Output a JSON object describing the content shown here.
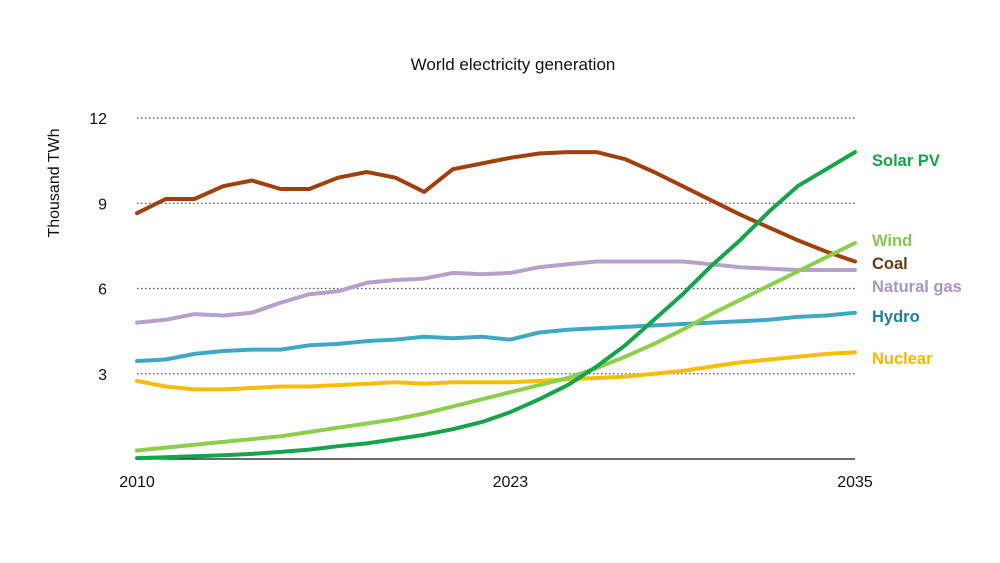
{
  "chart_data": {
    "type": "line",
    "title": "World electricity generation",
    "xlabel": "",
    "ylabel": "Thousand TWh",
    "xlim": [
      2010,
      2035
    ],
    "ylim": [
      0,
      12
    ],
    "x_ticks": [
      2010,
      2023,
      2035
    ],
    "y_ticks": [
      3,
      6,
      9,
      12
    ],
    "grid": "horizontal dotted",
    "legend": "right, end-of-line labels",
    "x": [
      2010,
      2011,
      2012,
      2013,
      2014,
      2015,
      2016,
      2017,
      2018,
      2019,
      2020,
      2021,
      2022,
      2023,
      2024,
      2025,
      2026,
      2027,
      2028,
      2029,
      2030,
      2031,
      2032,
      2033,
      2034,
      2035
    ],
    "series": [
      {
        "name": "Coal",
        "color": "#a0410d",
        "label_color": "#6b3a0e",
        "values": [
          8.65,
          9.15,
          9.15,
          9.6,
          9.8,
          9.5,
          9.5,
          9.9,
          10.1,
          9.9,
          9.4,
          10.2,
          10.4,
          10.6,
          10.75,
          10.8,
          10.8,
          10.55,
          10.1,
          9.6,
          9.1,
          8.6,
          8.15,
          7.7,
          7.3,
          6.95
        ]
      },
      {
        "name": "Natural gas",
        "color": "#b5a1cc",
        "label_color": "#a996c4",
        "values": [
          4.8,
          4.9,
          5.1,
          5.05,
          5.15,
          5.5,
          5.8,
          5.9,
          6.2,
          6.3,
          6.35,
          6.55,
          6.5,
          6.55,
          6.75,
          6.85,
          6.95,
          6.95,
          6.95,
          6.95,
          6.85,
          6.75,
          6.7,
          6.65,
          6.65,
          6.65
        ]
      },
      {
        "name": "Hydro",
        "color": "#3fa9c5",
        "label_color": "#1f7f99",
        "values": [
          3.45,
          3.5,
          3.7,
          3.8,
          3.85,
          3.85,
          4.0,
          4.05,
          4.15,
          4.2,
          4.3,
          4.25,
          4.3,
          4.2,
          4.45,
          4.55,
          4.6,
          4.65,
          4.7,
          4.75,
          4.8,
          4.85,
          4.9,
          5.0,
          5.05,
          5.15
        ]
      },
      {
        "name": "Nuclear",
        "color": "#f8bd0b",
        "label_color": "#f5b800",
        "values": [
          2.75,
          2.55,
          2.45,
          2.45,
          2.5,
          2.55,
          2.55,
          2.6,
          2.65,
          2.7,
          2.65,
          2.7,
          2.7,
          2.7,
          2.75,
          2.8,
          2.85,
          2.9,
          3.0,
          3.1,
          3.25,
          3.4,
          3.5,
          3.6,
          3.7,
          3.75
        ]
      },
      {
        "name": "Wind",
        "color": "#8ccf4d",
        "label_color": "#86c84a",
        "values": [
          0.3,
          0.4,
          0.5,
          0.6,
          0.7,
          0.8,
          0.95,
          1.1,
          1.25,
          1.4,
          1.6,
          1.85,
          2.1,
          2.35,
          2.6,
          2.85,
          3.2,
          3.6,
          4.05,
          4.55,
          5.1,
          5.6,
          6.1,
          6.6,
          7.1,
          7.6
        ]
      },
      {
        "name": "Solar PV",
        "color": "#14a54a",
        "label_color": "#14a54a",
        "values": [
          0.03,
          0.06,
          0.1,
          0.13,
          0.18,
          0.25,
          0.33,
          0.45,
          0.55,
          0.7,
          0.85,
          1.05,
          1.3,
          1.65,
          2.1,
          2.6,
          3.25,
          4.0,
          4.9,
          5.8,
          6.8,
          7.7,
          8.7,
          9.6,
          10.2,
          10.8
        ]
      }
    ]
  }
}
